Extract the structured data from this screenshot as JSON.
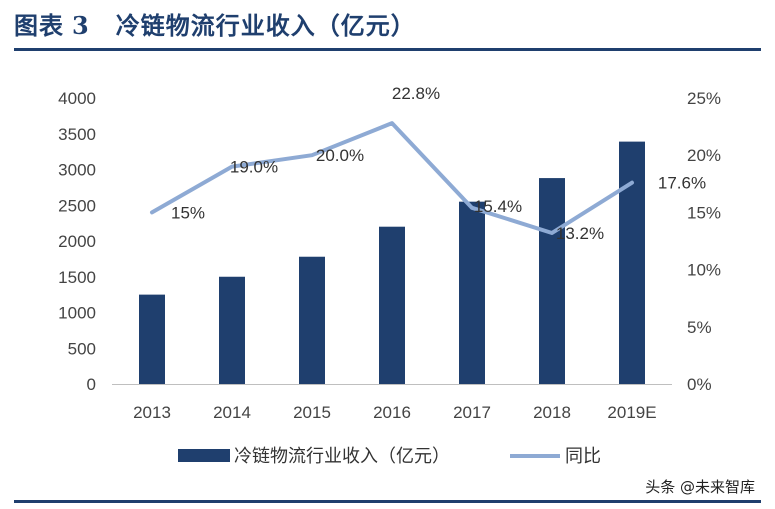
{
  "header": {
    "figure_label": "图表",
    "figure_number": "3",
    "figure_title": "冷链物流行业收入（亿元）"
  },
  "chart_data": {
    "type": "bar",
    "categories": [
      "2013",
      "2014",
      "2015",
      "2016",
      "2017",
      "2018",
      "2019E"
    ],
    "series": [
      {
        "name": "冷链物流行业收入（亿元）",
        "type": "bar",
        "axis": "left",
        "color": "#1f3f6e",
        "values": [
          1250,
          1500,
          1780,
          2200,
          2550,
          2880,
          3390
        ]
      },
      {
        "name": "同比",
        "type": "line",
        "axis": "right",
        "color": "#8eaad4",
        "values": [
          15.0,
          19.0,
          20.0,
          22.8,
          15.4,
          13.2,
          17.6
        ],
        "labels": [
          "15%",
          "19.0%",
          "20.0%",
          "22.8%",
          "15.4%",
          "13.2%",
          "17.6%"
        ]
      }
    ],
    "y_left": {
      "min": 0,
      "max": 4000,
      "step": 500,
      "ticks": [
        "0",
        "500",
        "1000",
        "1500",
        "2000",
        "2500",
        "3000",
        "3500",
        "4000"
      ]
    },
    "y_right": {
      "min": 0,
      "max": 25,
      "step": 5,
      "ticks": [
        "0%",
        "5%",
        "10%",
        "15%",
        "20%",
        "25%"
      ]
    },
    "legend_position": "bottom",
    "grid": false
  },
  "watermark": "头条 @未来智库"
}
